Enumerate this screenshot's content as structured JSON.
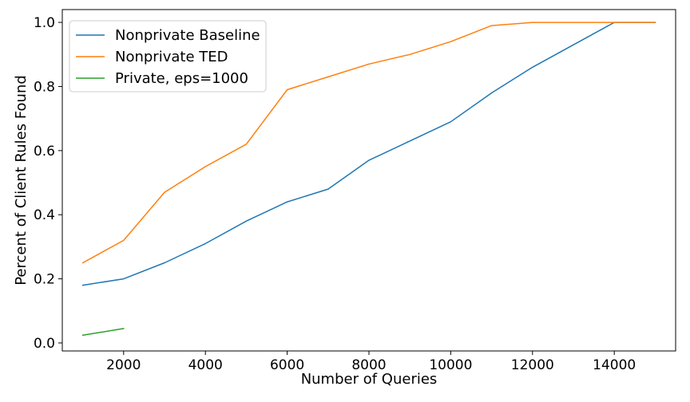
{
  "chart_data": {
    "type": "line",
    "title": "",
    "xlabel": "Number of Queries",
    "ylabel": "Percent of Client Rules Found",
    "xlim": [
      500,
      15500
    ],
    "ylim": [
      -0.025,
      1.04
    ],
    "xticks": [
      2000,
      4000,
      6000,
      8000,
      10000,
      12000,
      14000
    ],
    "yticks": [
      0.0,
      0.2,
      0.4,
      0.6,
      0.8,
      1.0
    ],
    "xtick_labels": [
      "2000",
      "4000",
      "6000",
      "8000",
      "10000",
      "12000",
      "14000"
    ],
    "ytick_labels": [
      "0.0",
      "0.2",
      "0.4",
      "0.6",
      "0.8",
      "1.0"
    ],
    "grid": false,
    "legend_position": "top-left",
    "series": [
      {
        "name": "Nonprivate Baseline",
        "color": "#1f77b4",
        "x": [
          1000,
          2000,
          3000,
          4000,
          5000,
          6000,
          7000,
          8000,
          9000,
          10000,
          11000,
          12000,
          13000,
          14000,
          15000
        ],
        "y": [
          0.18,
          0.2,
          0.25,
          0.31,
          0.38,
          0.44,
          0.48,
          0.57,
          0.63,
          0.69,
          0.78,
          0.86,
          0.93,
          1.0,
          1.0
        ]
      },
      {
        "name": "Nonprivate TED",
        "color": "#ff7f0e",
        "x": [
          1000,
          2000,
          3000,
          4000,
          5000,
          6000,
          7000,
          8000,
          9000,
          10000,
          11000,
          12000,
          13000,
          14000,
          15000
        ],
        "y": [
          0.25,
          0.32,
          0.47,
          0.55,
          0.62,
          0.79,
          0.83,
          0.87,
          0.9,
          0.94,
          0.99,
          1.0,
          1.0,
          1.0,
          1.0
        ]
      },
      {
        "name": "Private, eps=1000",
        "color": "#2ca02c",
        "x": [
          1000,
          2000
        ],
        "y": [
          0.024,
          0.045
        ]
      }
    ]
  }
}
